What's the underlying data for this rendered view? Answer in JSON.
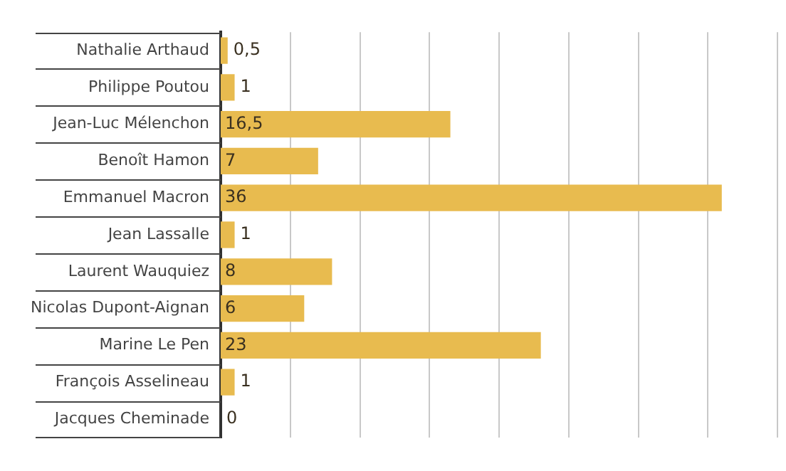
{
  "chart_data": {
    "type": "bar",
    "orientation": "horizontal",
    "categories": [
      "Nathalie Arthaud",
      "Philippe Poutou",
      "Jean-Luc Mélenchon",
      "Benoît Hamon",
      "Emmanuel Macron",
      "Jean Lassalle",
      "Laurent Wauquiez",
      "Nicolas Dupont-Aignan",
      "Marine Le Pen",
      "François Asselineau",
      "Jacques Cheminade"
    ],
    "values": [
      0.5,
      1,
      16.5,
      7,
      36,
      1,
      8,
      6,
      23,
      1,
      0
    ],
    "value_labels": [
      "0,5",
      "1",
      "16,5",
      "7",
      "36",
      "1",
      "8",
      "6",
      "23",
      "1",
      "0"
    ],
    "color": "#e8bb4f",
    "xlim": [
      0,
      40
    ],
    "xticks": [
      {
        "value": 5,
        "label": null
      },
      {
        "value": 10,
        "label": null
      },
      {
        "value": 15,
        "label": null
      },
      {
        "value": 20,
        "label": null
      },
      {
        "value": 25,
        "label": null
      },
      {
        "value": 30,
        "label": null
      },
      {
        "value": 35,
        "label": null
      },
      {
        "value": 40,
        "label": null
      }
    ],
    "grid": "x",
    "tick_labels": "y"
  }
}
